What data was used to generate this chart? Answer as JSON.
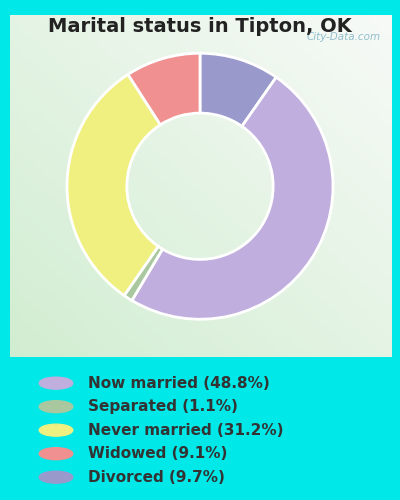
{
  "title": "Marital status in Tipton, OK",
  "ordered_slices": [
    9.7,
    48.8,
    1.1,
    31.2,
    9.1
  ],
  "ordered_colors": [
    "#9999cc",
    "#c0aede",
    "#aac8a0",
    "#f0f080",
    "#f09090"
  ],
  "legend_labels": [
    "Now married (48.8%)",
    "Separated (1.1%)",
    "Never married (31.2%)",
    "Widowed (9.1%)",
    "Divorced (9.7%)"
  ],
  "legend_colors": [
    "#c0aede",
    "#aac8a0",
    "#f0f080",
    "#f09090",
    "#9999cc"
  ],
  "bg_outer": "#00e8e8",
  "title_fontsize": 14,
  "title_color": "#222222",
  "legend_fontsize": 11,
  "watermark": "City-Data.com",
  "donut_width": 0.45
}
